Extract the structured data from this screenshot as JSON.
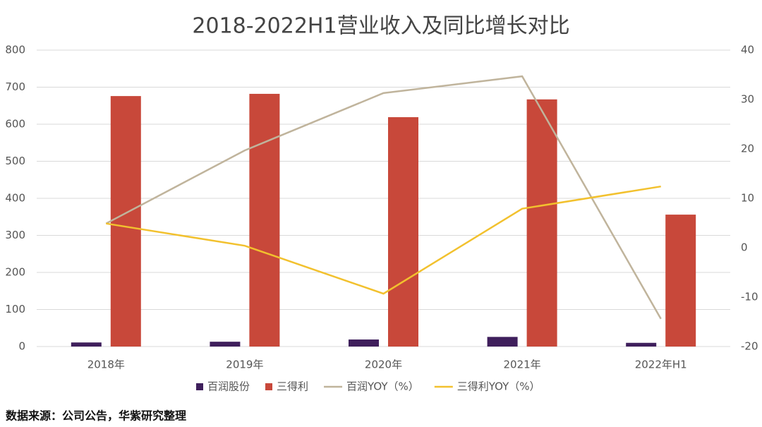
{
  "chart_data": {
    "type": "bar-line",
    "title": "2018-2022H1营业收入及同比增长对比",
    "categories": [
      "2018年",
      "2019年",
      "2020年",
      "2021年",
      "2022年H1"
    ],
    "series": [
      {
        "name": "百润股份",
        "type": "bar",
        "color": "#3f1f5c",
        "values": [
          11,
          13,
          19,
          26,
          10
        ]
      },
      {
        "name": "三得利",
        "type": "bar",
        "color": "#c8483a",
        "values": [
          676,
          682,
          619,
          667,
          356
        ]
      },
      {
        "name": "百润YOY（%）",
        "type": "line",
        "axis": "y2",
        "color": "#c0b49c",
        "values": [
          4.9,
          19.7,
          31.3,
          34.7,
          -14.4
        ]
      },
      {
        "name": "三得利YOY（%）",
        "type": "line",
        "axis": "y2",
        "color": "#f2c12e",
        "values": [
          4.9,
          0.4,
          -9.3,
          7.9,
          12.4
        ]
      }
    ],
    "ylim": [
      0,
      800
    ],
    "yticks": [
      0,
      100,
      200,
      300,
      400,
      500,
      600,
      700,
      800
    ],
    "y2lim": [
      -20,
      40
    ],
    "y2ticks": [
      -20,
      -10,
      0,
      10,
      20,
      30,
      40
    ],
    "grid": true,
    "legend": "bottom",
    "source": "数据来源：公司公告，华紫研究整理"
  }
}
